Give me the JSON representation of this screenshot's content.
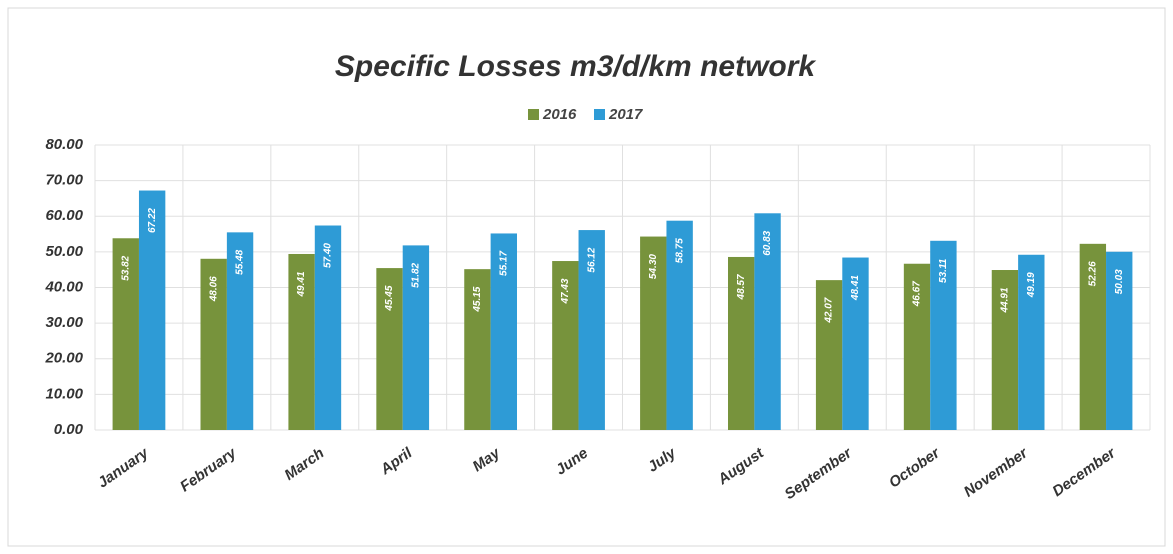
{
  "chart_data": {
    "type": "bar",
    "title": "Specific Losses m3/d/km network",
    "categories": [
      "January",
      "February",
      "March",
      "April",
      "May",
      "June",
      "July",
      "August",
      "September",
      "October",
      "November",
      "December"
    ],
    "series": [
      {
        "name": "2016",
        "color": "#77933c",
        "values": [
          53.82,
          48.06,
          49.41,
          45.45,
          45.15,
          47.43,
          54.3,
          48.57,
          42.07,
          46.67,
          44.91,
          52.26
        ],
        "value_labels": [
          "53.82",
          "48.06",
          "49.41",
          "45.45",
          "45.15",
          "47.43",
          "54.30",
          "48.57",
          "42.07",
          "46.67",
          "44.91",
          "52.26"
        ]
      },
      {
        "name": "2017",
        "color": "#2e9bd6",
        "values": [
          67.22,
          55.48,
          57.4,
          51.82,
          55.17,
          56.12,
          58.75,
          60.83,
          48.41,
          53.11,
          49.19,
          50.03
        ],
        "value_labels": [
          "67.22",
          "55.48",
          "57.40",
          "51.82",
          "55.17",
          "56.12",
          "58.75",
          "60.83",
          "48.41",
          "53.11",
          "49.19",
          "50.03"
        ]
      }
    ],
    "ylim": [
      0,
      80
    ],
    "yticks": [
      {
        "value": 0,
        "label": "0.00"
      },
      {
        "value": 10,
        "label": "10.00"
      },
      {
        "value": 20,
        "label": "20.00"
      },
      {
        "value": 30,
        "label": "30.00"
      },
      {
        "value": 40,
        "label": "40.00"
      },
      {
        "value": 50,
        "label": "50.00"
      },
      {
        "value": 60,
        "label": "60.00"
      },
      {
        "value": 70,
        "label": "70.00"
      },
      {
        "value": 80,
        "label": "80.00"
      }
    ],
    "grid": true,
    "legend": "top"
  }
}
